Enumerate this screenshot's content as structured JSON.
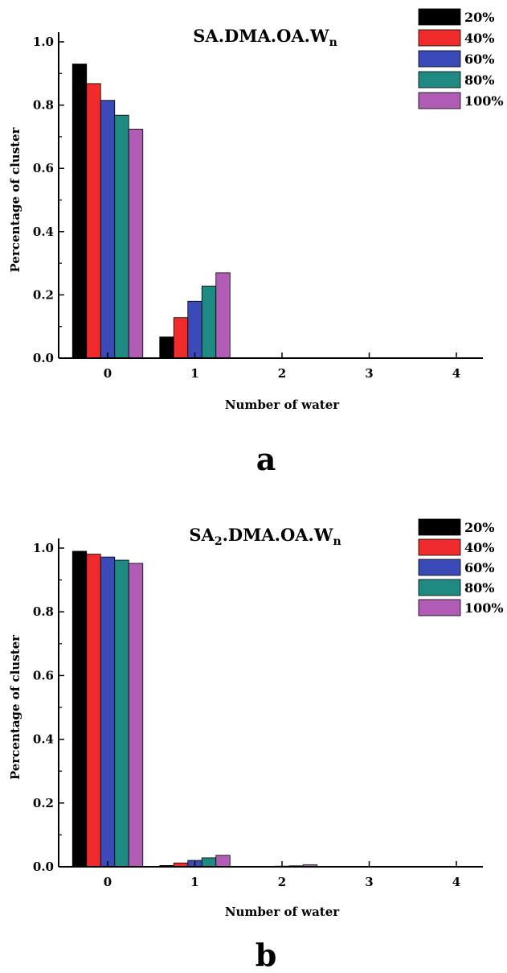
{
  "chart_data": [
    {
      "type": "bar",
      "title": "SA.DMA.OA.W",
      "title_subscript": "n",
      "xlabel": "Number of water",
      "ylabel": "Percentage of cluster",
      "categories": [
        "0",
        "1",
        "2",
        "3",
        "4"
      ],
      "yticks": [
        "0.0",
        "0.2",
        "0.4",
        "0.6",
        "0.8",
        "1.0"
      ],
      "ylim": [
        0,
        1.0
      ],
      "legend_position": "top-right",
      "panel_label": "a",
      "series": [
        {
          "name": "20%",
          "color": "#000000",
          "values": [
            0.93,
            0.067,
            0,
            0,
            0
          ]
        },
        {
          "name": "40%",
          "color": "#ef2b2b",
          "values": [
            0.868,
            0.128,
            0,
            0,
            0
          ]
        },
        {
          "name": "60%",
          "color": "#3b4ab6",
          "values": [
            0.815,
            0.18,
            0,
            0,
            0
          ]
        },
        {
          "name": "80%",
          "color": "#1f8a82",
          "values": [
            0.768,
            0.228,
            0,
            0,
            0
          ]
        },
        {
          "name": "100%",
          "color": "#b15cb5",
          "values": [
            0.724,
            0.27,
            0,
            0,
            0
          ]
        }
      ]
    },
    {
      "type": "bar",
      "title": "SA",
      "title_sub1": "2",
      "title_mid": ".DMA.OA.W",
      "title_subscript": "n",
      "xlabel": "Number of water",
      "ylabel": "Percentage of cluster",
      "categories": [
        "0",
        "1",
        "2",
        "3",
        "4"
      ],
      "yticks": [
        "0.0",
        "0.2",
        "0.4",
        "0.6",
        "0.8",
        "1.0"
      ],
      "ylim": [
        0,
        1.0
      ],
      "legend_position": "top-right",
      "panel_label": "b",
      "series": [
        {
          "name": "20%",
          "color": "#000000",
          "values": [
            0.99,
            0.004,
            0,
            0,
            0
          ]
        },
        {
          "name": "40%",
          "color": "#ef2b2b",
          "values": [
            0.981,
            0.012,
            0,
            0,
            0
          ]
        },
        {
          "name": "60%",
          "color": "#3b4ab6",
          "values": [
            0.972,
            0.02,
            0.002,
            0,
            0
          ]
        },
        {
          "name": "80%",
          "color": "#1f8a82",
          "values": [
            0.962,
            0.028,
            0.003,
            0,
            0
          ]
        },
        {
          "name": "100%",
          "color": "#b15cb5",
          "values": [
            0.952,
            0.036,
            0.006,
            0,
            0
          ]
        }
      ]
    }
  ]
}
